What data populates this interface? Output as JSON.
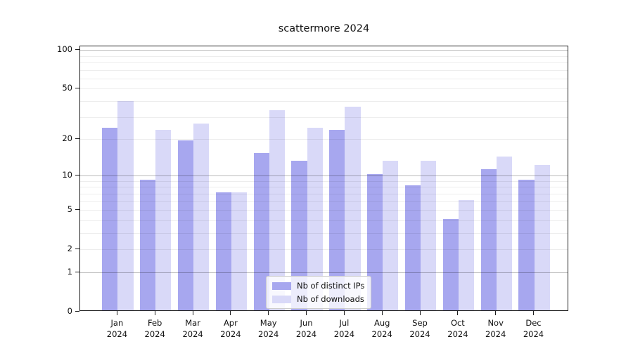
{
  "title": "scattermore 2024",
  "chart_data": {
    "type": "bar",
    "title": "scattermore 2024",
    "x_ticks": [
      {
        "month": "Jan",
        "year": "2024"
      },
      {
        "month": "Feb",
        "year": "2024"
      },
      {
        "month": "Mar",
        "year": "2024"
      },
      {
        "month": "Apr",
        "year": "2024"
      },
      {
        "month": "May",
        "year": "2024"
      },
      {
        "month": "Jun",
        "year": "2024"
      },
      {
        "month": "Jul",
        "year": "2024"
      },
      {
        "month": "Aug",
        "year": "2024"
      },
      {
        "month": "Sep",
        "year": "2024"
      },
      {
        "month": "Oct",
        "year": "2024"
      },
      {
        "month": "Nov",
        "year": "2024"
      },
      {
        "month": "Dec",
        "year": "2024"
      }
    ],
    "series": [
      {
        "name": "Nb of distinct IPs",
        "color": "#a7a7ef",
        "values": [
          24,
          9,
          19,
          7,
          15,
          13,
          23,
          10,
          8,
          4,
          11,
          9
        ]
      },
      {
        "name": "Nb of downloads",
        "color": "#d9d9f8",
        "values": [
          39,
          23,
          26,
          7,
          33,
          24,
          35,
          13,
          13,
          6,
          14,
          12
        ]
      }
    ],
    "yscale": "log1p",
    "ylim": [
      0,
      106.5
    ],
    "y_ticks": [
      {
        "value": 100,
        "label": "100"
      },
      {
        "value": 50,
        "label": "50"
      },
      {
        "value": 20,
        "label": "20"
      },
      {
        "value": 10,
        "label": "10"
      },
      {
        "value": 5,
        "label": "5"
      },
      {
        "value": 2,
        "label": "2"
      },
      {
        "value": 1,
        "label": "1"
      },
      {
        "value": 0,
        "label": "0"
      }
    ],
    "y_major_grid": [
      1,
      10,
      100
    ],
    "y_minor_grid": [
      2,
      3,
      4,
      5,
      6,
      7,
      8,
      9,
      20,
      30,
      40,
      50,
      60,
      70,
      80,
      90
    ],
    "grid": true,
    "grid_above_bars": true,
    "legend_position": "lower center",
    "xlabel": "",
    "ylabel": ""
  }
}
